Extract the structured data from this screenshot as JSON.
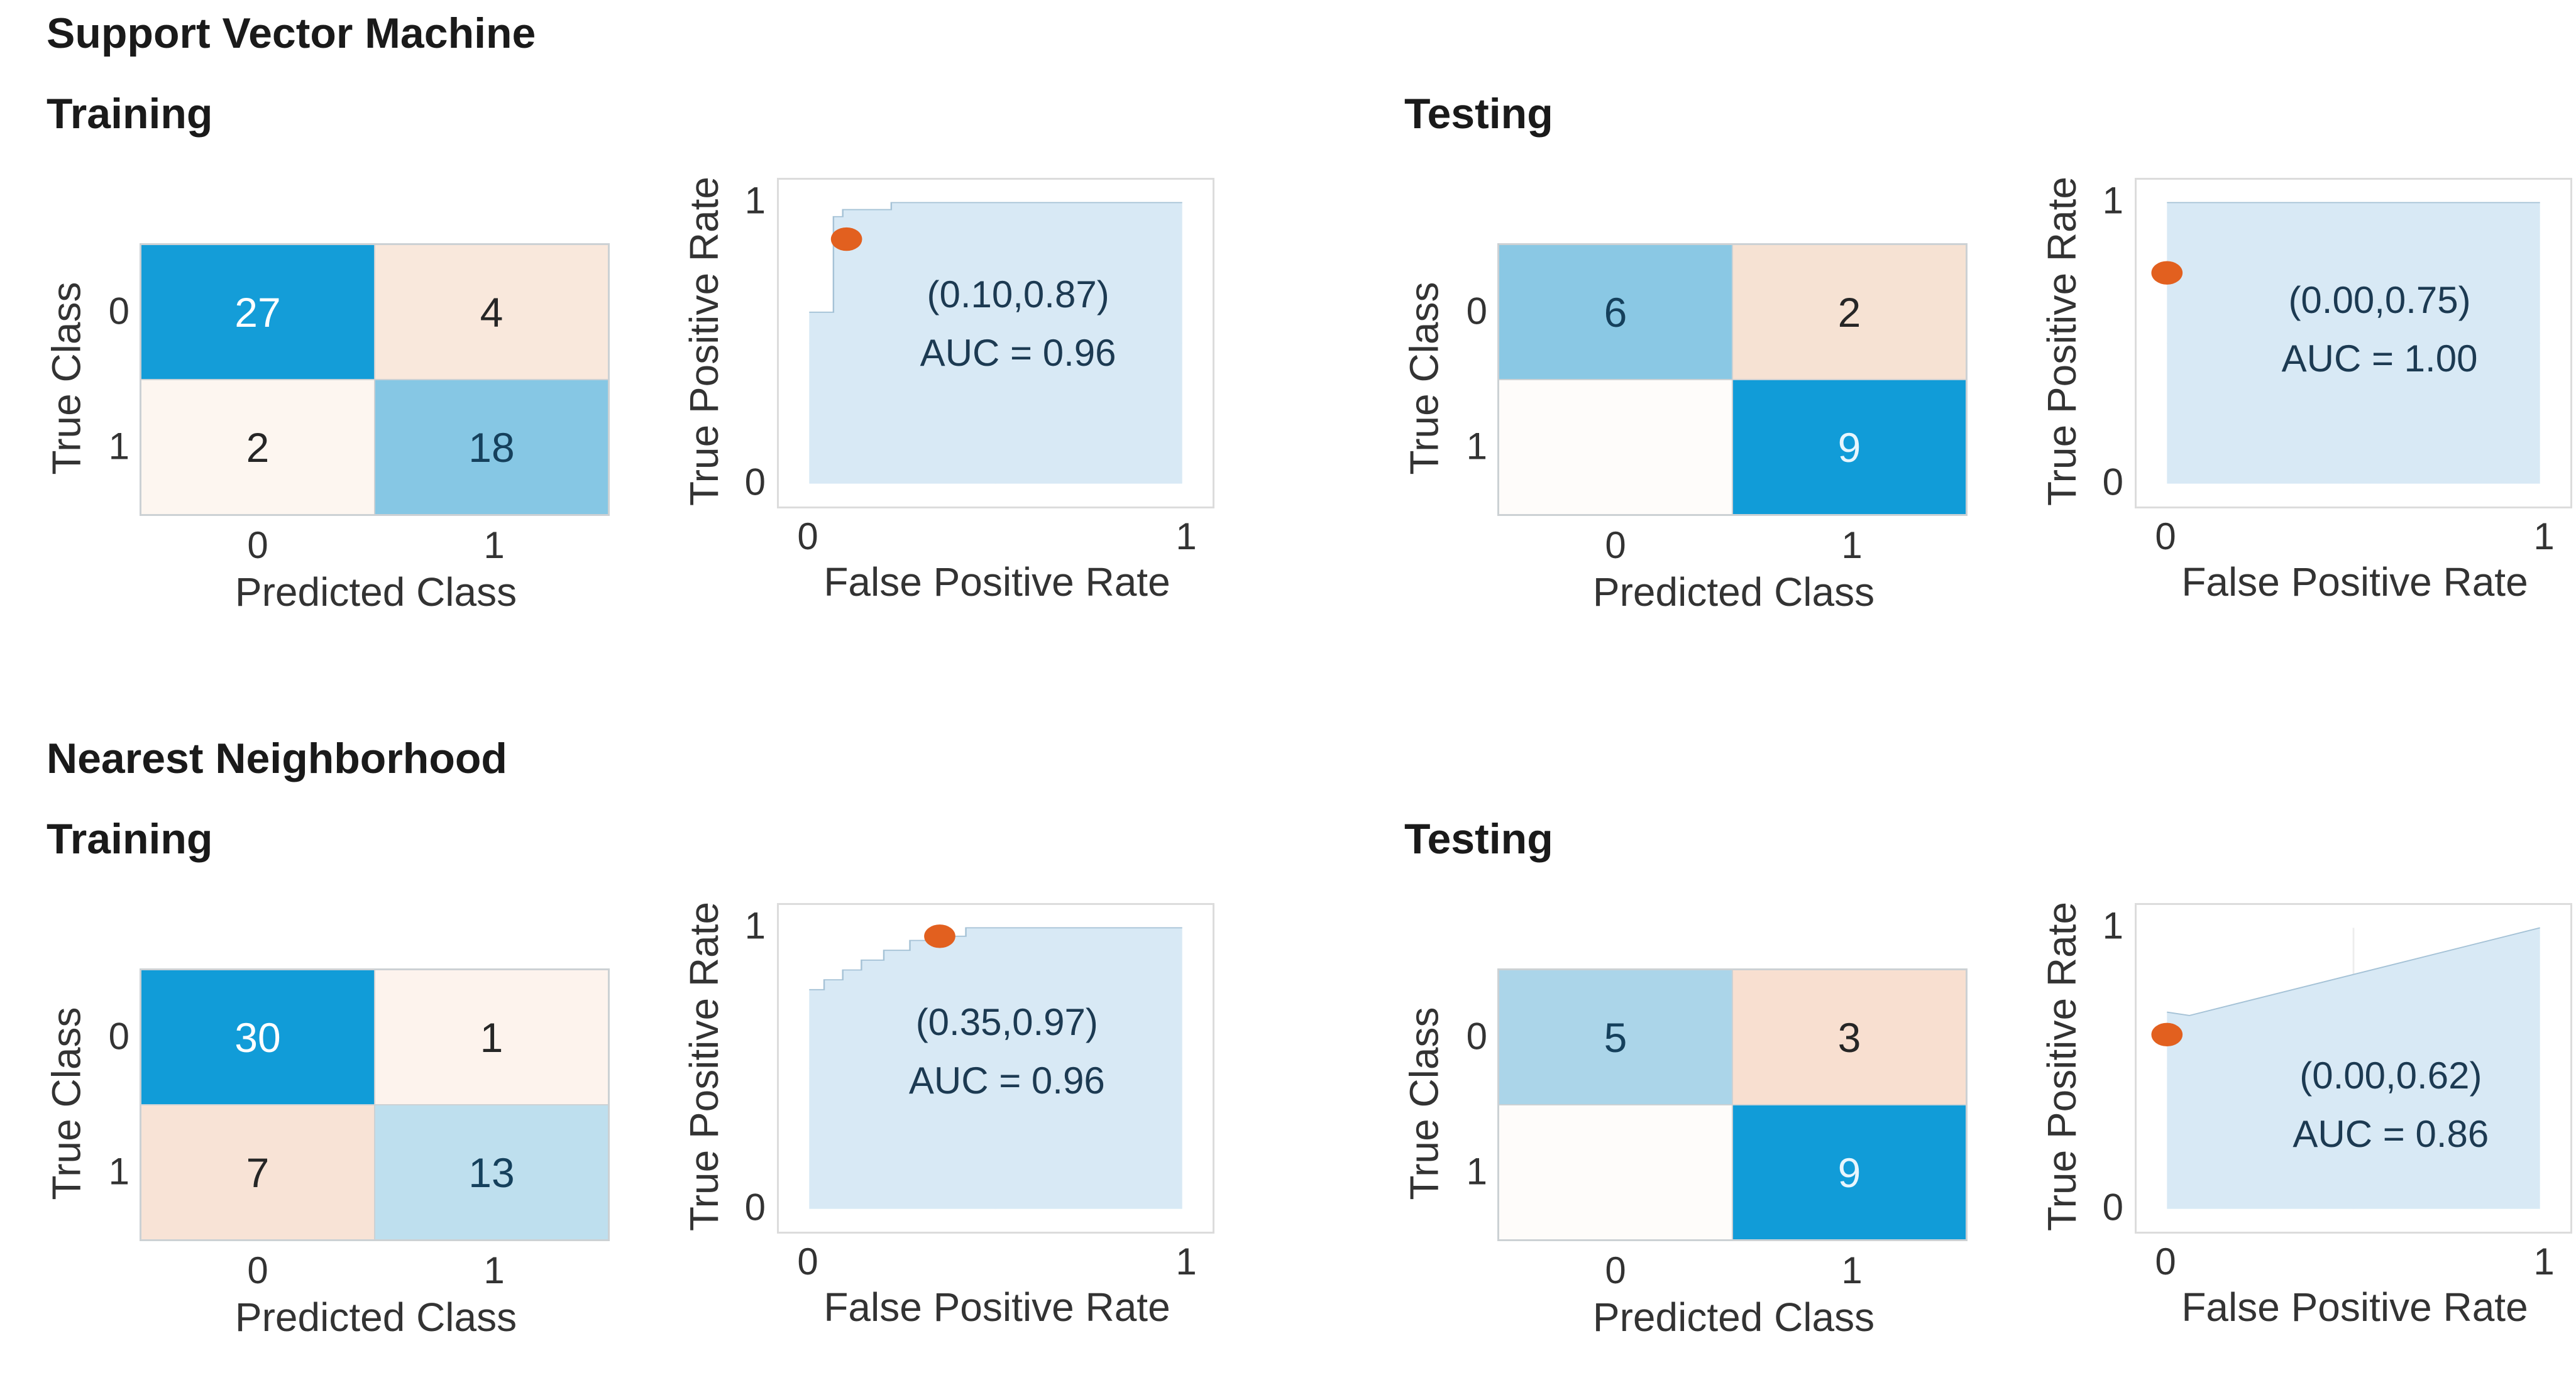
{
  "labels": {
    "true_class": "True Class",
    "predicted_class": "Predicted Class",
    "tpr": "True Positive Rate",
    "fpr": "False Positive Rate"
  },
  "colors": {
    "roc_fill": "#d8e9f5",
    "roc_stroke": "#a5c2d6",
    "roc_grid": "#ededed",
    "dot": "#e2601f",
    "annot_text": "#1c3a52",
    "dark_blue_cell": "#129dd8",
    "title_text": "#1a1a1a"
  },
  "chart_data": [
    {
      "id": "svm-training",
      "algorithm": "Support Vector Machine",
      "phase": "Training",
      "confusion_matrix": {
        "type": "heatmap",
        "xlabel": "Predicted Class",
        "ylabel": "True Class",
        "x_ticks": [
          "0",
          "1"
        ],
        "y_ticks": [
          "0",
          "1"
        ],
        "cells": [
          {
            "true_class": "0",
            "predicted_class": "0",
            "value": "27",
            "bg": "#149dd8",
            "text": "#ffffff"
          },
          {
            "true_class": "0",
            "predicted_class": "1",
            "value": "4",
            "bg": "#f9e8dc",
            "text": "#262626"
          },
          {
            "true_class": "1",
            "predicted_class": "0",
            "value": "2",
            "bg": "#fdf6f0",
            "text": "#262626"
          },
          {
            "true_class": "1",
            "predicted_class": "1",
            "value": "18",
            "bg": "#86c7e4",
            "text": "#15405c"
          }
        ]
      },
      "roc": {
        "type": "area",
        "xlabel": "False Positive Rate",
        "ylabel": "True Positive Rate",
        "x_ticks": [
          "0",
          "1"
        ],
        "y_ticks": [
          "0",
          "1"
        ],
        "xlim": [
          0,
          1
        ],
        "ylim": [
          0,
          1
        ],
        "curve": [
          [
            0,
            0
          ],
          [
            0,
            0.61
          ],
          [
            0.065,
            0.61
          ],
          [
            0.065,
            0.95
          ],
          [
            0.09,
            0.95
          ],
          [
            0.09,
            0.975
          ],
          [
            0.22,
            0.975
          ],
          [
            0.22,
            1
          ],
          [
            1,
            1
          ],
          [
            1,
            0
          ]
        ],
        "operating_point": [
          0.1,
          0.87
        ],
        "point_label": "(0.10,0.87)",
        "auc": 0.96,
        "auc_label": "AUC = 0.96",
        "annot_pos": [
          0.56,
          0.57
        ]
      }
    },
    {
      "id": "svm-testing",
      "phase": "Testing",
      "confusion_matrix": {
        "type": "heatmap",
        "xlabel": "Predicted Class",
        "ylabel": "True Class",
        "x_ticks": [
          "0",
          "1"
        ],
        "y_ticks": [
          "0",
          "1"
        ],
        "cells": [
          {
            "true_class": "0",
            "predicted_class": "0",
            "value": "6",
            "bg": "#8ac8e4",
            "text": "#15405c"
          },
          {
            "true_class": "0",
            "predicted_class": "1",
            "value": "2",
            "bg": "#f6e2d3",
            "text": "#262626"
          },
          {
            "true_class": "1",
            "predicted_class": "0",
            "value": "",
            "bg": "#fefcfa",
            "text": "#262626"
          },
          {
            "true_class": "1",
            "predicted_class": "1",
            "value": "9",
            "bg": "#119cd8",
            "text": "#e8f6fd"
          }
        ]
      },
      "roc": {
        "type": "area",
        "xlabel": "False Positive Rate",
        "ylabel": "True Positive Rate",
        "x_ticks": [
          "0",
          "1"
        ],
        "y_ticks": [
          "0",
          "1"
        ],
        "xlim": [
          0,
          1
        ],
        "ylim": [
          0,
          1
        ],
        "curve": [
          [
            0,
            0
          ],
          [
            0,
            1
          ],
          [
            1,
            1
          ],
          [
            1,
            0
          ]
        ],
        "operating_point": [
          0.0,
          0.75
        ],
        "point_label": "(0.00,0.75)",
        "auc": 1.0,
        "auc_label": "AUC = 1.00",
        "annot_pos": [
          0.57,
          0.55
        ]
      }
    },
    {
      "id": "nn-training",
      "algorithm": "Nearest Neighborhood",
      "phase": "Training",
      "confusion_matrix": {
        "type": "heatmap",
        "xlabel": "Predicted Class",
        "ylabel": "True Class",
        "x_ticks": [
          "0",
          "1"
        ],
        "y_ticks": [
          "0",
          "1"
        ],
        "cells": [
          {
            "true_class": "0",
            "predicted_class": "0",
            "value": "30",
            "bg": "#119cd8",
            "text": "#ffffff"
          },
          {
            "true_class": "0",
            "predicted_class": "1",
            "value": "1",
            "bg": "#fdf3ed",
            "text": "#262626"
          },
          {
            "true_class": "1",
            "predicted_class": "0",
            "value": "7",
            "bg": "#f8e3d6",
            "text": "#262626"
          },
          {
            "true_class": "1",
            "predicted_class": "1",
            "value": "13",
            "bg": "#bedfee",
            "text": "#15405c"
          }
        ]
      },
      "roc": {
        "type": "area",
        "xlabel": "False Positive Rate",
        "ylabel": "True Positive Rate",
        "x_ticks": [
          "0",
          "1"
        ],
        "y_ticks": [
          "0",
          "1"
        ],
        "xlim": [
          0,
          1
        ],
        "ylim": [
          0,
          1
        ],
        "curve": [
          [
            0,
            0
          ],
          [
            0,
            0.78
          ],
          [
            0.04,
            0.78
          ],
          [
            0.04,
            0.815
          ],
          [
            0.09,
            0.815
          ],
          [
            0.09,
            0.85
          ],
          [
            0.14,
            0.85
          ],
          [
            0.14,
            0.885
          ],
          [
            0.2,
            0.885
          ],
          [
            0.2,
            0.92
          ],
          [
            0.27,
            0.92
          ],
          [
            0.27,
            0.955
          ],
          [
            0.35,
            0.955
          ],
          [
            0.35,
            0.97
          ],
          [
            0.42,
            0.97
          ],
          [
            0.42,
            1
          ],
          [
            1,
            1
          ],
          [
            1,
            0
          ]
        ],
        "operating_point": [
          0.35,
          0.97
        ],
        "point_label": "(0.35,0.97)",
        "auc": 0.96,
        "auc_label": "AUC = 0.96",
        "annot_pos": [
          0.53,
          0.56
        ]
      }
    },
    {
      "id": "nn-testing",
      "phase": "Testing",
      "confusion_matrix": {
        "type": "heatmap",
        "xlabel": "Predicted Class",
        "ylabel": "True Class",
        "x_ticks": [
          "0",
          "1"
        ],
        "y_ticks": [
          "0",
          "1"
        ],
        "cells": [
          {
            "true_class": "0",
            "predicted_class": "0",
            "value": "5",
            "bg": "#abd5e9",
            "text": "#15405c"
          },
          {
            "true_class": "0",
            "predicted_class": "1",
            "value": "3",
            "bg": "#f8dfd0",
            "text": "#262626"
          },
          {
            "true_class": "1",
            "predicted_class": "0",
            "value": "",
            "bg": "#fefcfa",
            "text": "#262626"
          },
          {
            "true_class": "1",
            "predicted_class": "1",
            "value": "9",
            "bg": "#119cd8",
            "text": "#e8f6fd"
          }
        ]
      },
      "roc": {
        "type": "area",
        "xlabel": "False Positive Rate",
        "ylabel": "True Positive Rate",
        "x_ticks": [
          "0",
          "1"
        ],
        "y_ticks": [
          "0",
          "1"
        ],
        "xlim": [
          0,
          1
        ],
        "ylim": [
          0,
          1
        ],
        "curve": [
          [
            0,
            0
          ],
          [
            0,
            0.7
          ],
          [
            0.06,
            0.688
          ],
          [
            1,
            1
          ],
          [
            1,
            0
          ]
        ],
        "operating_point": [
          0.0,
          0.62
        ],
        "point_label": "(0.00,0.62)",
        "auc": 0.86,
        "auc_label": "AUC = 0.86",
        "annot_pos": [
          0.6,
          0.37
        ]
      }
    }
  ]
}
